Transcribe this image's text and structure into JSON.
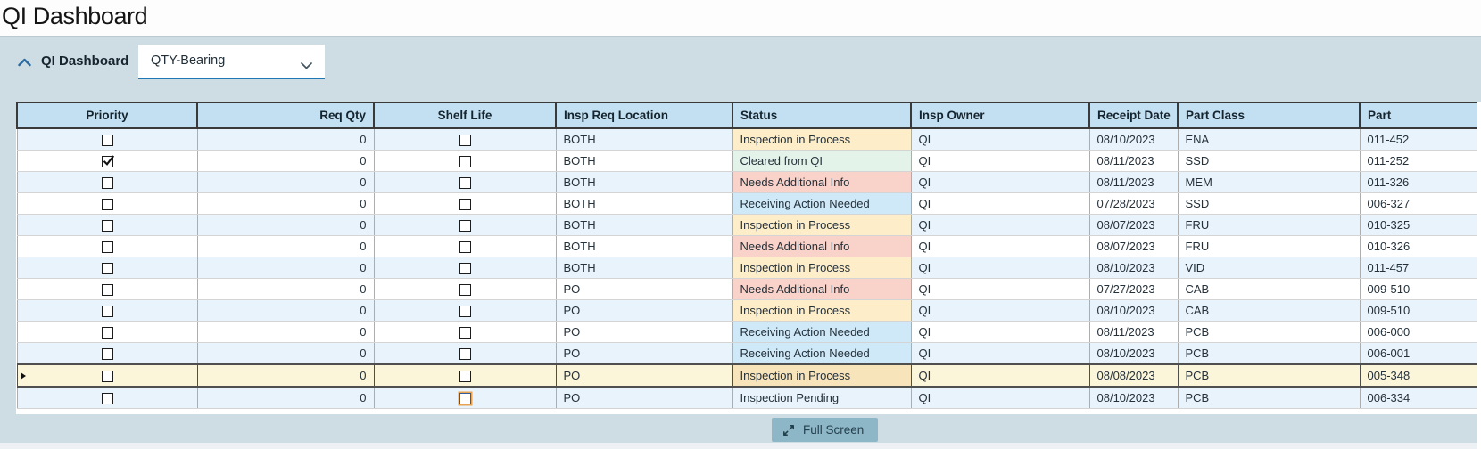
{
  "page": {
    "title": "QI Dashboard"
  },
  "panel": {
    "collapse_icon": "chevron-up",
    "label": "QI Dashboard",
    "view_dropdown": {
      "value": "QTY-Bearing"
    }
  },
  "table": {
    "columns": [
      {
        "key": "priority",
        "label": "Priority",
        "align": "center",
        "type": "checkbox"
      },
      {
        "key": "req_qty",
        "label": "Req Qty",
        "align": "right",
        "type": "text"
      },
      {
        "key": "shelf_life",
        "label": "Shelf Life",
        "align": "center",
        "type": "checkbox"
      },
      {
        "key": "insp_req_location",
        "label": "Insp Req Location",
        "align": "left",
        "type": "text"
      },
      {
        "key": "status",
        "label": "Status",
        "align": "left",
        "type": "status"
      },
      {
        "key": "insp_owner",
        "label": "Insp Owner",
        "align": "left",
        "type": "text"
      },
      {
        "key": "receipt_date",
        "label": "Receipt Date",
        "align": "left",
        "type": "text"
      },
      {
        "key": "part_class",
        "label": "Part Class",
        "align": "left",
        "type": "text"
      },
      {
        "key": "part",
        "label": "Part",
        "align": "left",
        "type": "text"
      }
    ],
    "status_styles": {
      "Inspection in Process": {
        "bg": "#fdeec9",
        "selected_bg": "#f8e4bb"
      },
      "Cleared from QI": {
        "bg": "#e4f3ea"
      },
      "Needs Additional Info": {
        "bg": "#f9d2ca"
      },
      "Receiving Action Needed": {
        "bg": "#cfe9f8"
      },
      "Inspection Pending": {
        "bg": ""
      }
    },
    "rows": [
      {
        "priority": false,
        "req_qty": "0",
        "shelf_life": false,
        "insp_req_location": "BOTH",
        "status": "Inspection in Process",
        "insp_owner": "QI",
        "receipt_date": "08/10/2023",
        "part_class": "ENA",
        "part": "011-452",
        "selected": false
      },
      {
        "priority": true,
        "req_qty": "0",
        "shelf_life": false,
        "insp_req_location": "BOTH",
        "status": "Cleared from QI",
        "insp_owner": "QI",
        "receipt_date": "08/11/2023",
        "part_class": "SSD",
        "part": "011-252",
        "selected": false
      },
      {
        "priority": false,
        "req_qty": "0",
        "shelf_life": false,
        "insp_req_location": "BOTH",
        "status": "Needs Additional Info",
        "insp_owner": "QI",
        "receipt_date": "08/11/2023",
        "part_class": "MEM",
        "part": "011-326",
        "selected": false
      },
      {
        "priority": false,
        "req_qty": "0",
        "shelf_life": false,
        "insp_req_location": "BOTH",
        "status": "Receiving Action Needed",
        "insp_owner": "QI",
        "receipt_date": "07/28/2023",
        "part_class": "SSD",
        "part": "006-327",
        "selected": false
      },
      {
        "priority": false,
        "req_qty": "0",
        "shelf_life": false,
        "insp_req_location": "BOTH",
        "status": "Inspection in Process",
        "insp_owner": "QI",
        "receipt_date": "08/07/2023",
        "part_class": "FRU",
        "part": "010-325",
        "selected": false
      },
      {
        "priority": false,
        "req_qty": "0",
        "shelf_life": false,
        "insp_req_location": "BOTH",
        "status": "Needs Additional Info",
        "insp_owner": "QI",
        "receipt_date": "08/07/2023",
        "part_class": "FRU",
        "part": "010-326",
        "selected": false
      },
      {
        "priority": false,
        "req_qty": "0",
        "shelf_life": false,
        "insp_req_location": "BOTH",
        "status": "Inspection in Process",
        "insp_owner": "QI",
        "receipt_date": "08/10/2023",
        "part_class": "VID",
        "part": "011-457",
        "selected": false
      },
      {
        "priority": false,
        "req_qty": "0",
        "shelf_life": false,
        "insp_req_location": "PO",
        "status": "Needs Additional Info",
        "insp_owner": "QI",
        "receipt_date": "07/27/2023",
        "part_class": "CAB",
        "part": "009-510",
        "selected": false
      },
      {
        "priority": false,
        "req_qty": "0",
        "shelf_life": false,
        "insp_req_location": "PO",
        "status": "Inspection in Process",
        "insp_owner": "QI",
        "receipt_date": "08/10/2023",
        "part_class": "CAB",
        "part": "009-510",
        "selected": false
      },
      {
        "priority": false,
        "req_qty": "0",
        "shelf_life": false,
        "insp_req_location": "PO",
        "status": "Receiving Action Needed",
        "insp_owner": "QI",
        "receipt_date": "08/11/2023",
        "part_class": "PCB",
        "part": "006-000",
        "selected": false
      },
      {
        "priority": false,
        "req_qty": "0",
        "shelf_life": false,
        "insp_req_location": "PO",
        "status": "Receiving Action Needed",
        "insp_owner": "QI",
        "receipt_date": "08/10/2023",
        "part_class": "PCB",
        "part": "006-001",
        "selected": false
      },
      {
        "priority": false,
        "req_qty": "0",
        "shelf_life": false,
        "insp_req_location": "PO",
        "status": "Inspection in Process",
        "insp_owner": "QI",
        "receipt_date": "08/08/2023",
        "part_class": "PCB",
        "part": "005-348",
        "selected": true
      },
      {
        "priority": false,
        "req_qty": "0",
        "shelf_life": false,
        "insp_req_location": "PO",
        "status": "Inspection Pending",
        "insp_owner": "QI",
        "receipt_date": "08/10/2023",
        "part_class": "PCB",
        "part": "006-334",
        "selected": false,
        "checkbox_focused": true
      }
    ]
  },
  "footer": {
    "full_screen_label": "Full Screen"
  },
  "colors": {
    "panel_bg": "#cedde4",
    "table_header_bg": "#c2e0f2",
    "row_alt_bg": "#e8f3fc",
    "selected_row_bg": "#fbf5da",
    "accent_blue": "#1f77b4",
    "status_in_process": "#fdeec9",
    "status_cleared": "#e4f3ea",
    "status_needs_info": "#f9d2ca",
    "status_receiving_action": "#cfe9f8"
  }
}
